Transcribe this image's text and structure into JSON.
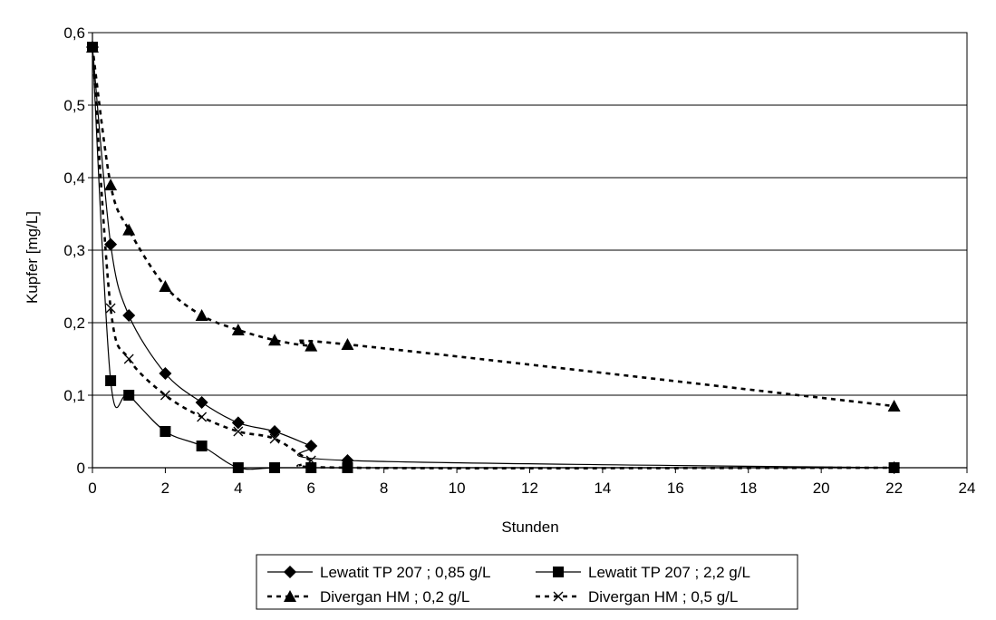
{
  "chart_data": {
    "type": "line",
    "title": "",
    "xlabel": "Stunden",
    "ylabel": "Kupfer [mg/L]",
    "xlim": [
      0,
      24
    ],
    "ylim": [
      0,
      0.6
    ],
    "x_ticks": [
      0,
      2,
      4,
      6,
      8,
      10,
      12,
      14,
      16,
      18,
      20,
      22,
      24
    ],
    "x_tick_labels": [
      "0",
      "2",
      "4",
      "6",
      "8",
      "10",
      "12",
      "14",
      "16",
      "18",
      "20",
      "22",
      "24"
    ],
    "y_ticks": [
      0,
      0.1,
      0.2,
      0.3,
      0.4,
      0.5,
      0.6
    ],
    "y_tick_labels": [
      "0",
      "0,1",
      "0,2",
      "0,3",
      "0,4",
      "0,5",
      "0,6"
    ],
    "grid": "horizontal",
    "legend_position": "bottom",
    "series": [
      {
        "name": "Lewatit TP 207 ; 0,85 g/L",
        "marker": "diamond",
        "line": "solid",
        "color": "#000000",
        "x": [
          0,
          0.5,
          1,
          2,
          3,
          4,
          5,
          6,
          7,
          22
        ],
        "y": [
          0.58,
          0.308,
          0.21,
          0.13,
          0.09,
          0.062,
          0.05,
          0.03,
          0.01,
          0
        ]
      },
      {
        "name": "Lewatit TP 207 ; 2,2 g/L",
        "marker": "square",
        "line": "solid",
        "color": "#000000",
        "x": [
          0,
          0.5,
          1,
          2,
          3,
          4,
          5,
          6,
          7,
          22
        ],
        "y": [
          0.58,
          0.12,
          0.1,
          0.05,
          0.03,
          0,
          0,
          0,
          0,
          0
        ]
      },
      {
        "name": "Divergan HM ; 0,2 g/L",
        "marker": "triangle",
        "line": "dashed",
        "color": "#000000",
        "x": [
          0,
          0.5,
          1,
          2,
          3,
          4,
          5,
          6,
          7,
          22
        ],
        "y": [
          0.58,
          0.39,
          0.328,
          0.25,
          0.21,
          0.19,
          0.176,
          0.168,
          0.17,
          0.085
        ]
      },
      {
        "name": "Divergan HM ; 0,5 g/L",
        "marker": "x",
        "line": "dashed",
        "color": "#000000",
        "x": [
          0,
          0.5,
          1,
          2,
          3,
          4,
          5,
          6,
          7,
          22
        ],
        "y": [
          0.58,
          0.22,
          0.15,
          0.1,
          0.07,
          0.05,
          0.04,
          0.01,
          0,
          0
        ]
      }
    ]
  }
}
